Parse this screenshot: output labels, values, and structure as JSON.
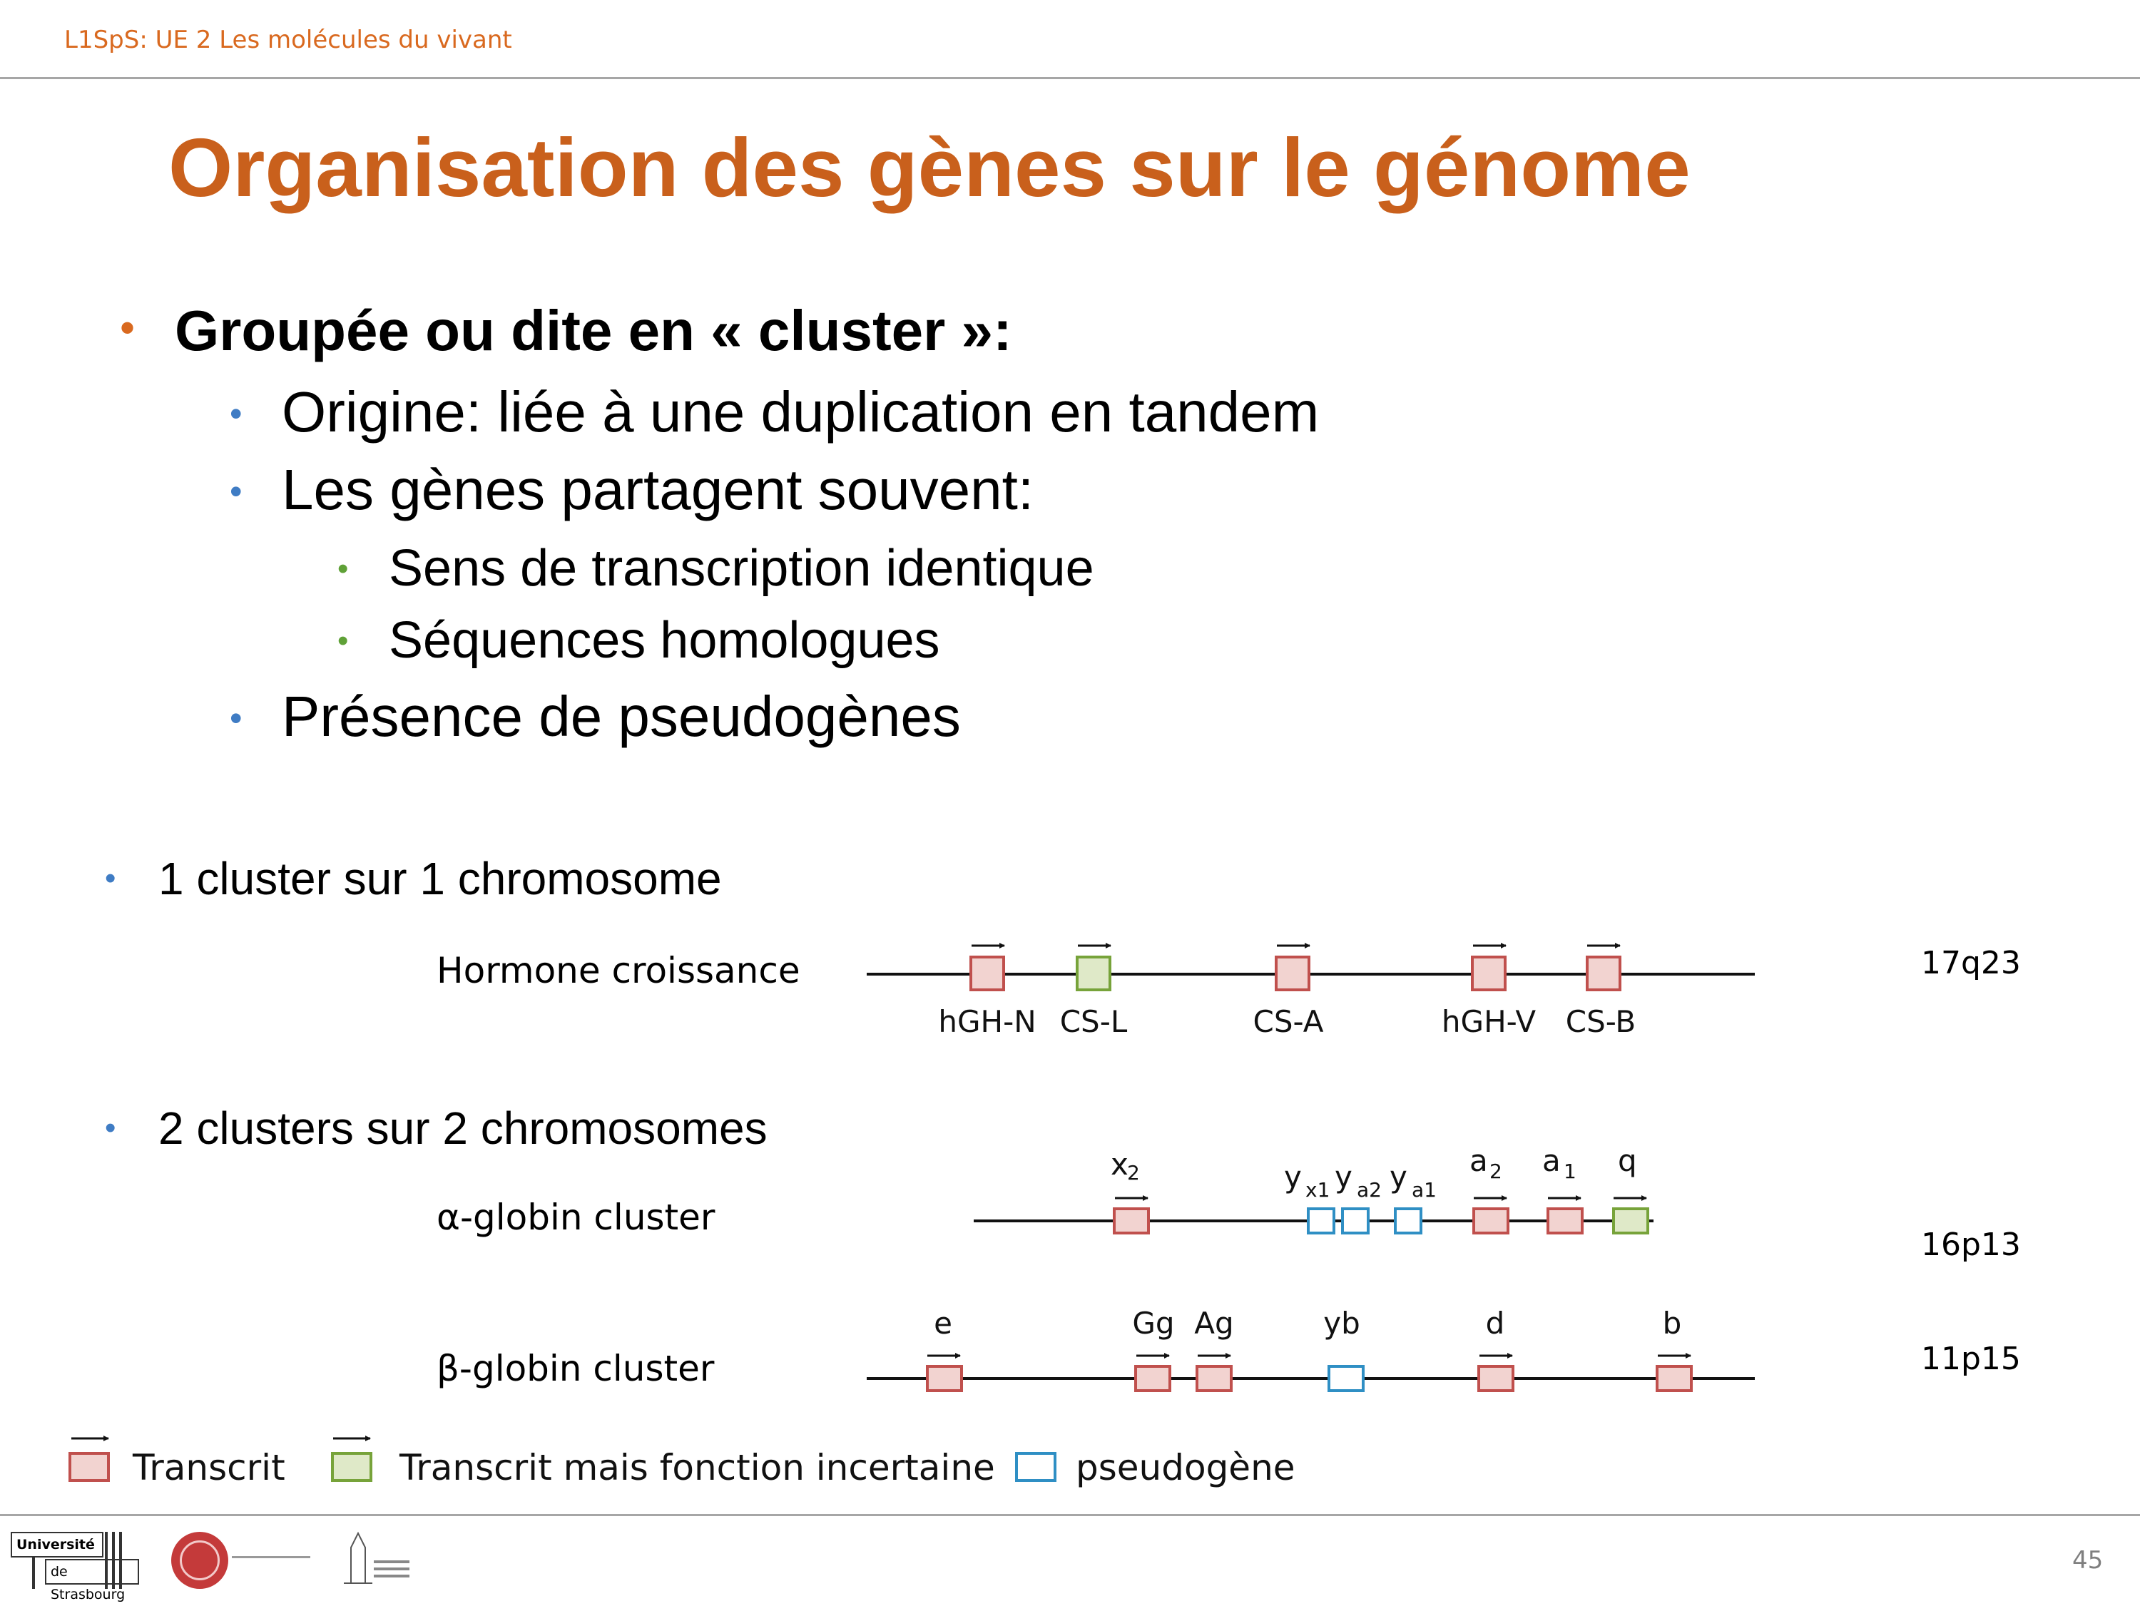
{
  "header": {
    "course": "L1SpS: UE 2 Les molécules du vivant"
  },
  "title": "Organisation des gènes sur le génome",
  "bullets": {
    "main": "Groupée ou dite en « cluster »:",
    "origin": "Origine: liée à une duplication en tandem",
    "share": "Les gènes partagent souvent:",
    "share_items": [
      "Sens de transcription identique",
      "Séquences homologues"
    ],
    "pseudo": "Présence de pseudogènes"
  },
  "section1": "1 cluster sur 1 chromosome",
  "section2": "2 clusters sur 2 chromosomes",
  "clusters": {
    "hormone": {
      "label": "Hormone croissance",
      "locus": "17q23",
      "genes": [
        {
          "name": "hGH-N",
          "kind": "transcrit"
        },
        {
          "name": "CS-L",
          "kind": "incertain"
        },
        {
          "name": "CS-A",
          "kind": "transcrit"
        },
        {
          "name": "hGH-V",
          "kind": "transcrit"
        },
        {
          "name": "CS-B",
          "kind": "transcrit"
        }
      ]
    },
    "alpha": {
      "label": "α-globin cluster",
      "locus": "16p13",
      "genes": [
        {
          "letter": "x",
          "sub": "2",
          "kind": "transcrit"
        },
        {
          "letter": "y",
          "sub": "x1",
          "kind": "pseudogene"
        },
        {
          "letter": "y",
          "sub": "a2",
          "kind": "pseudogene"
        },
        {
          "letter": "y",
          "sub": "a1",
          "kind": "pseudogene"
        },
        {
          "letter": "a",
          "sub": "2",
          "kind": "transcrit"
        },
        {
          "letter": "a",
          "sub": "1",
          "kind": "transcrit"
        },
        {
          "letter": "q",
          "sub": "",
          "kind": "incertain"
        }
      ]
    },
    "beta": {
      "label": "β-globin cluster",
      "locus": "11p15",
      "genes": [
        {
          "name": "e",
          "kind": "transcrit"
        },
        {
          "name": "Gg",
          "kind": "transcrit"
        },
        {
          "name": "Ag",
          "kind": "transcrit"
        },
        {
          "name": "yb",
          "kind": "pseudogene"
        },
        {
          "name": "d",
          "kind": "transcrit"
        },
        {
          "name": "b",
          "kind": "transcrit"
        }
      ]
    }
  },
  "legend": {
    "transcrit": "Transcrit",
    "incertain": "Transcrit mais fonction incertaine",
    "pseudogene": "pseudogène"
  },
  "colors": {
    "transcrit_fill": "#f2d3d0",
    "transcrit_stroke": "#c0504d",
    "incertain_fill": "#dfe9c8",
    "incertain_stroke": "#77a33a",
    "pseudogene_fill": "#ffffff",
    "pseudogene_stroke": "#2f8fc4",
    "accent": "#c9601c"
  },
  "footer": {
    "logo_univ_line1": "Université",
    "logo_univ_line2": "de Strasbourg",
    "page_number": "45"
  }
}
